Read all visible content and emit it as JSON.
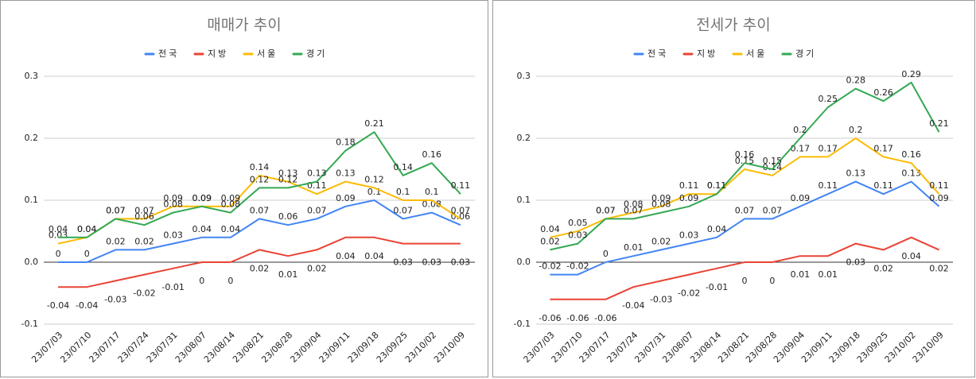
{
  "chart_data": [
    {
      "type": "line",
      "title": "매매가 추이",
      "categories": [
        "23/07/03",
        "23/07/10",
        "23/07/17",
        "23/07/24",
        "23/07/31",
        "23/08/07",
        "23/08/14",
        "23/08/21",
        "23/08/28",
        "23/09/04",
        "23/09/11",
        "23/09/18",
        "23/09/25",
        "23/10/02",
        "23/10/09"
      ],
      "series": [
        {
          "name": "전국",
          "color": "#4285f4",
          "values": [
            0,
            0,
            0.02,
            0.02,
            0.03,
            0.04,
            0.04,
            0.07,
            0.06,
            0.07,
            0.09,
            0.1,
            0.07,
            0.08,
            0.06
          ]
        },
        {
          "name": "지방",
          "color": "#ea4335",
          "values": [
            -0.04,
            -0.04,
            -0.03,
            -0.02,
            -0.01,
            0,
            0,
            0.02,
            0.01,
            0.02,
            0.04,
            0.04,
            0.03,
            0.03,
            0.03
          ]
        },
        {
          "name": "서울",
          "color": "#fbbc04",
          "values": [
            0.03,
            0.04,
            0.07,
            0.07,
            0.09,
            0.09,
            0.09,
            0.14,
            0.13,
            0.11,
            0.13,
            0.12,
            0.1,
            0.1,
            0.07
          ]
        },
        {
          "name": "경기",
          "color": "#34a853",
          "values": [
            0.04,
            0.04,
            0.07,
            0.06,
            0.08,
            0.09,
            0.08,
            0.12,
            0.12,
            0.13,
            0.18,
            0.21,
            0.14,
            0.16,
            0.11
          ]
        }
      ],
      "ylim": [
        -0.1,
        0.3
      ],
      "yticks": [
        -0.1,
        {
          "value": 0,
          "label": "0.0"
        },
        0.1,
        0.2,
        0.3
      ],
      "grid": true,
      "legend": "top"
    },
    {
      "type": "line",
      "title": "전세가 추이",
      "categories": [
        "23/07/03",
        "23/07/10",
        "23/07/17",
        "23/07/24",
        "23/07/31",
        "23/08/07",
        "23/08/14",
        "23/08/21",
        "23/08/28",
        "23/09/04",
        "23/09/11",
        "23/09/18",
        "23/09/25",
        "23/10/02",
        "23/10/09"
      ],
      "series": [
        {
          "name": "전국",
          "color": "#4285f4",
          "values": [
            -0.02,
            -0.02,
            0,
            0.01,
            0.02,
            0.03,
            0.04,
            0.07,
            0.07,
            0.09,
            0.11,
            0.13,
            0.11,
            0.13,
            0.09
          ]
        },
        {
          "name": "지방",
          "color": "#ea4335",
          "values": [
            -0.06,
            -0.06,
            -0.06,
            -0.04,
            -0.03,
            -0.02,
            -0.01,
            0,
            0,
            0.01,
            0.01,
            0.03,
            0.02,
            0.04,
            0.02
          ]
        },
        {
          "name": "서울",
          "color": "#fbbc04",
          "values": [
            0.04,
            0.05,
            0.07,
            0.08,
            0.09,
            0.11,
            0.11,
            0.15,
            0.14,
            0.17,
            0.17,
            0.2,
            0.17,
            0.16,
            0.11
          ]
        },
        {
          "name": "경기",
          "color": "#34a853",
          "values": [
            0.02,
            0.03,
            0.07,
            0.07,
            0.08,
            0.09,
            0.11,
            0.16,
            0.15,
            0.2,
            0.25,
            0.28,
            0.26,
            0.29,
            0.21
          ]
        }
      ],
      "ylim": [
        -0.1,
        0.3
      ],
      "yticks": [
        -0.1,
        {
          "value": 0,
          "label": "0.0"
        },
        0.1,
        0.2,
        0.3
      ],
      "grid": true,
      "legend": "top"
    }
  ]
}
